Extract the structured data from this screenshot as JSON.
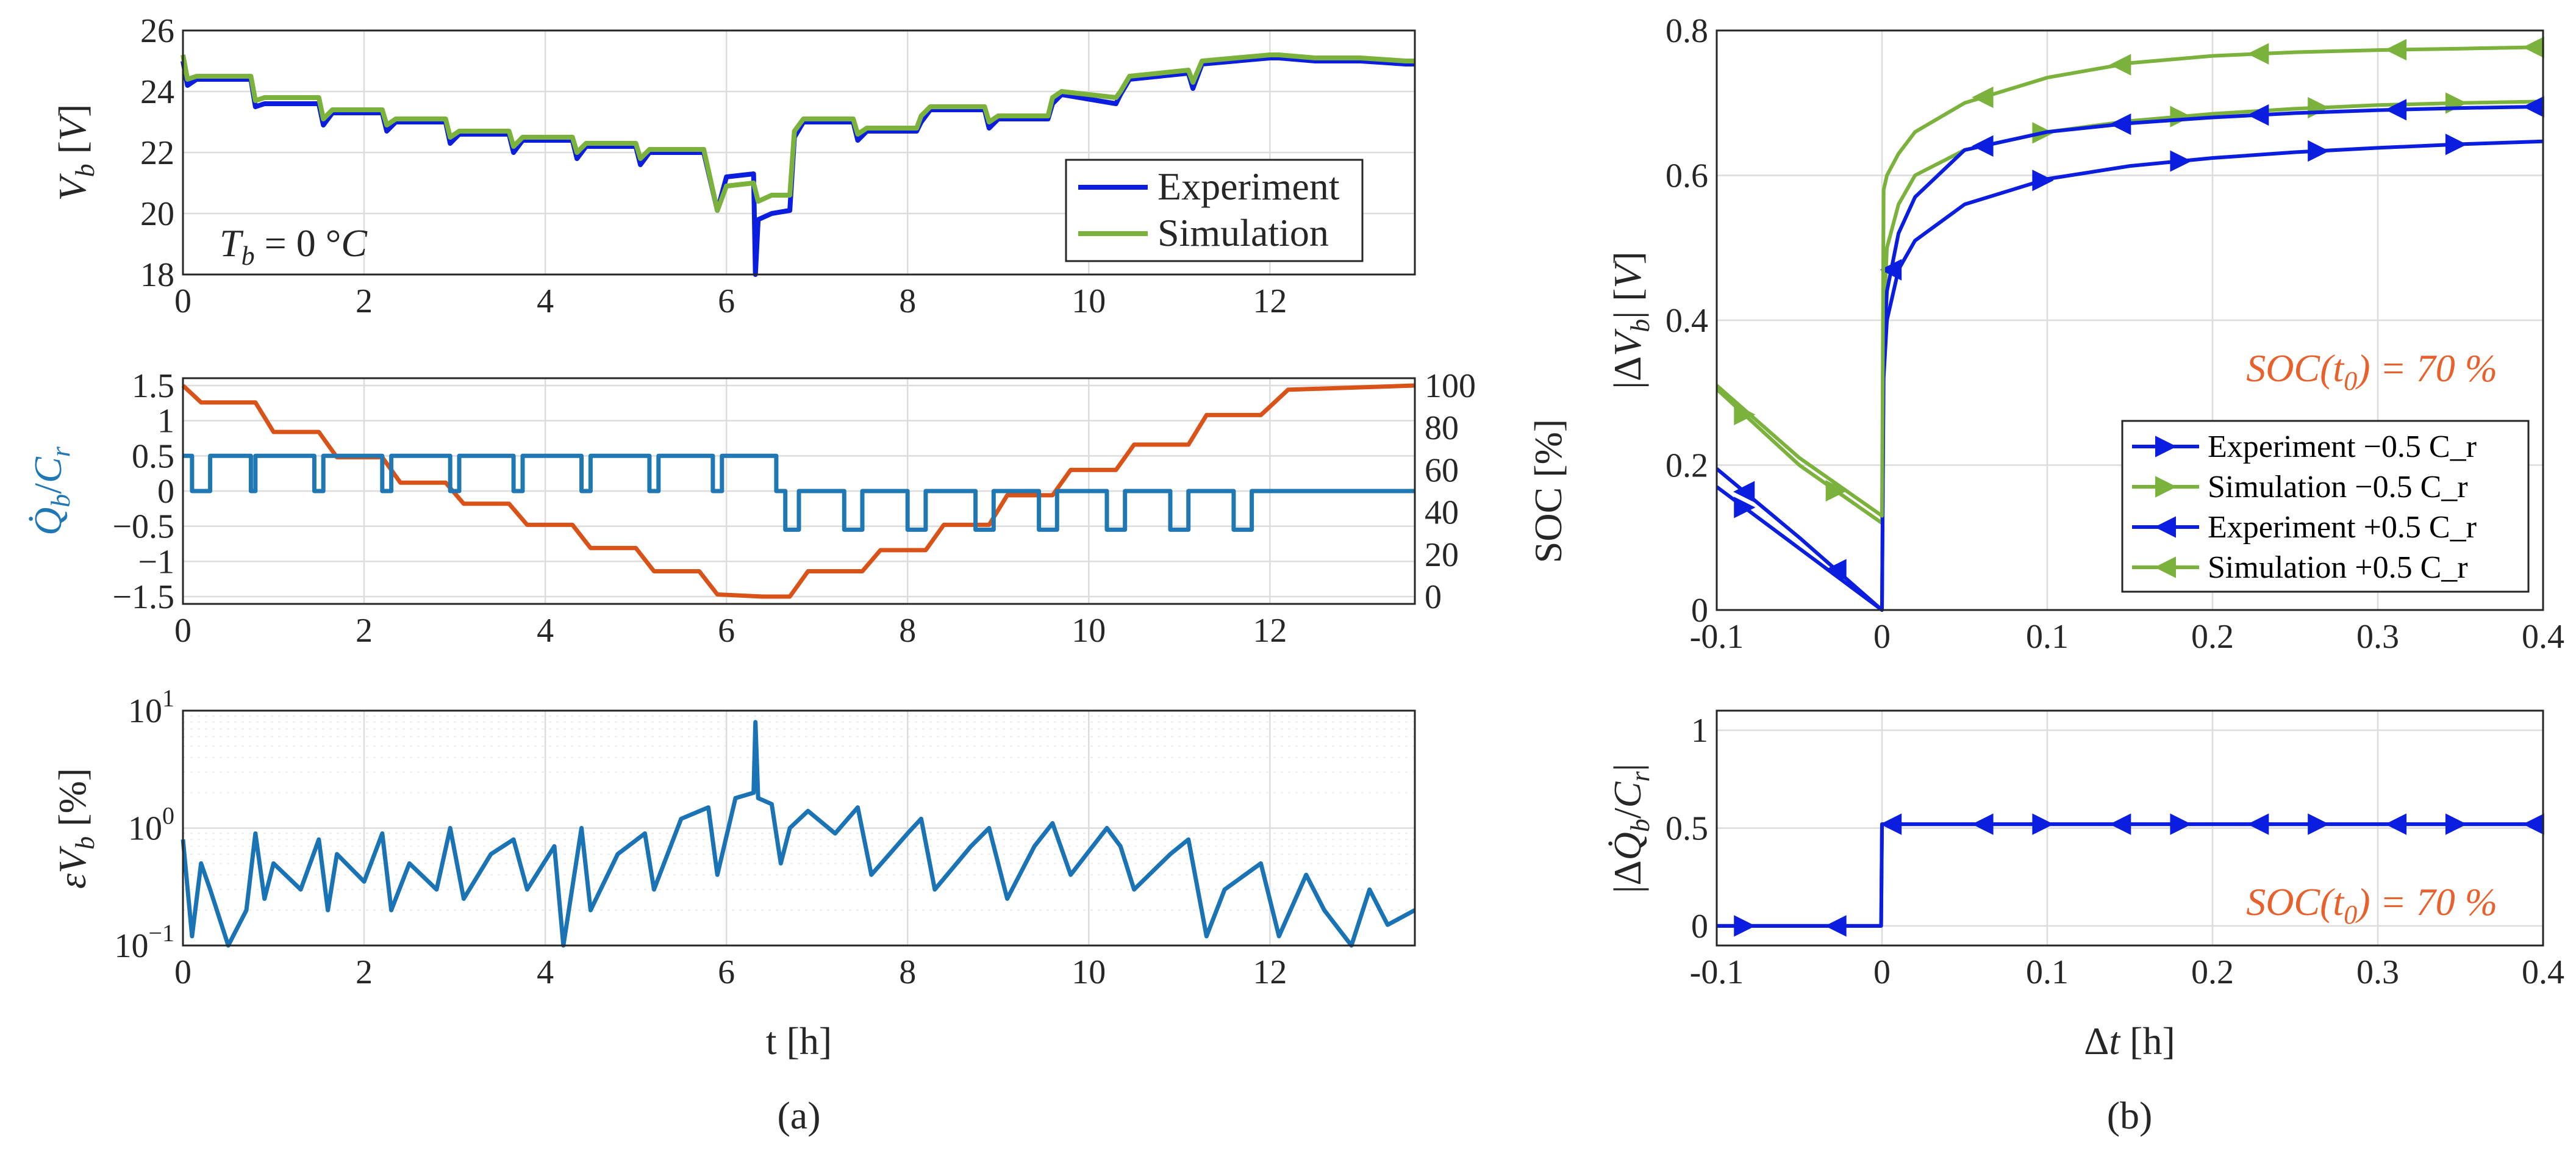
{
  "colors": {
    "experiment": "#0b1ee0",
    "simulation": "#7ab23c",
    "current": "#1f77b4",
    "soc": "#d95319",
    "annotation": "#e8602c",
    "error": "#1a73b5"
  },
  "captions": {
    "a": "(a)",
    "b": "(b)"
  },
  "chart_data": [
    {
      "id": "voltage",
      "type": "line",
      "ylabel": "V_b [V]",
      "xlim": [
        0,
        13.6
      ],
      "ylim": [
        18,
        26
      ],
      "xticks": [
        "0",
        "2",
        "4",
        "6",
        "8",
        "10",
        "12"
      ],
      "yticks": [
        "18",
        "20",
        "22",
        "24",
        "26"
      ],
      "annotation": "T_b = 0 °C",
      "legend_position": "bottom-right",
      "series": [
        {
          "name": "Experiment",
          "color": "experiment",
          "x": [
            0,
            0.05,
            0.15,
            0.3,
            0.75,
            0.8,
            0.9,
            1.5,
            1.55,
            1.65,
            2.2,
            2.25,
            2.35,
            2.9,
            2.95,
            3.05,
            3.6,
            3.65,
            3.75,
            4.3,
            4.35,
            4.45,
            5.0,
            5.05,
            5.15,
            5.75,
            5.9,
            6.0,
            6.3,
            6.32,
            6.35,
            6.5,
            6.7,
            6.75,
            6.85,
            7.4,
            7.45,
            7.55,
            8.1,
            8.15,
            8.25,
            8.85,
            8.9,
            9.0,
            9.55,
            9.6,
            9.7,
            10.3,
            10.35,
            10.45,
            11.1,
            11.15,
            11.25,
            12.0,
            12.1,
            12.5,
            13.0,
            13.5,
            13.6
          ],
          "y": [
            25.0,
            24.2,
            24.4,
            24.4,
            24.4,
            23.5,
            23.6,
            23.6,
            22.9,
            23.3,
            23.3,
            22.7,
            23.0,
            23.0,
            22.3,
            22.6,
            22.6,
            22.0,
            22.4,
            22.4,
            21.8,
            22.2,
            22.2,
            21.6,
            22.0,
            22.0,
            20.1,
            21.2,
            21.3,
            18.0,
            19.8,
            20.0,
            20.1,
            22.5,
            23.0,
            23.0,
            22.4,
            22.7,
            22.7,
            23.0,
            23.4,
            23.4,
            22.8,
            23.1,
            23.1,
            23.6,
            23.9,
            23.6,
            23.9,
            24.4,
            24.6,
            24.1,
            24.9,
            25.1,
            25.1,
            25.0,
            25.0,
            24.9,
            24.9
          ]
        },
        {
          "name": "Simulation",
          "color": "simulation",
          "x": [
            0,
            0.05,
            0.15,
            0.3,
            0.75,
            0.8,
            0.9,
            1.5,
            1.55,
            1.65,
            2.2,
            2.25,
            2.35,
            2.9,
            2.95,
            3.05,
            3.6,
            3.65,
            3.75,
            4.3,
            4.35,
            4.45,
            5.0,
            5.05,
            5.15,
            5.75,
            5.9,
            6.0,
            6.3,
            6.35,
            6.5,
            6.7,
            6.75,
            6.85,
            7.4,
            7.45,
            7.55,
            8.1,
            8.15,
            8.25,
            8.85,
            8.9,
            9.0,
            9.55,
            9.6,
            9.7,
            10.3,
            10.35,
            10.45,
            11.1,
            11.15,
            11.25,
            12.0,
            12.1,
            12.5,
            13.0,
            13.5,
            13.6
          ],
          "y": [
            25.2,
            24.4,
            24.5,
            24.5,
            24.5,
            23.7,
            23.8,
            23.8,
            23.1,
            23.4,
            23.4,
            22.9,
            23.1,
            23.1,
            22.5,
            22.7,
            22.7,
            22.2,
            22.5,
            22.5,
            22.0,
            22.3,
            22.3,
            21.8,
            22.1,
            22.1,
            20.1,
            20.9,
            21.0,
            20.4,
            20.6,
            20.6,
            22.7,
            23.1,
            23.1,
            22.6,
            22.8,
            22.8,
            23.2,
            23.5,
            23.5,
            23.0,
            23.2,
            23.2,
            23.8,
            24.0,
            23.8,
            24.0,
            24.5,
            24.7,
            24.3,
            25.0,
            25.2,
            25.2,
            25.1,
            25.1,
            25.0,
            25.0
          ]
        }
      ]
    },
    {
      "id": "current-soc",
      "type": "line",
      "ylabel_left": "Q̇_b/C_r",
      "ylabel_right": "SOC [%]",
      "xlim": [
        0,
        13.6
      ],
      "ylim_left": [
        -1.5,
        1.5
      ],
      "ylim_right": [
        0,
        100
      ],
      "xticks": [
        "0",
        "2",
        "4",
        "6",
        "8",
        "10",
        "12"
      ],
      "yticks_left": [
        "−1.5",
        "−1",
        "−0.5",
        "0",
        "0.5",
        "1",
        "1.5"
      ],
      "yticks_right": [
        "0",
        "20",
        "40",
        "60",
        "80",
        "100"
      ],
      "series": [
        {
          "name": "current",
          "axis": "left",
          "color": "current",
          "x": [
            0,
            0.1,
            0.1,
            0.3,
            0.3,
            0.75,
            0.75,
            0.8,
            0.8,
            1.45,
            1.45,
            1.55,
            1.55,
            2.2,
            2.2,
            2.3,
            2.3,
            2.95,
            2.95,
            3.05,
            3.05,
            3.65,
            3.65,
            3.75,
            3.75,
            4.4,
            4.4,
            4.5,
            4.5,
            5.15,
            5.15,
            5.25,
            5.25,
            5.85,
            5.85,
            5.95,
            5.95,
            6.55,
            6.55,
            6.65,
            6.65,
            6.8,
            6.8,
            7.3,
            7.3,
            7.5,
            7.5,
            8.0,
            8.0,
            8.2,
            8.2,
            8.75,
            8.75,
            8.95,
            8.95,
            9.45,
            9.45,
            9.65,
            9.65,
            10.2,
            10.2,
            10.4,
            10.4,
            10.9,
            10.9,
            11.1,
            11.1,
            11.6,
            11.6,
            11.8,
            11.8,
            13.6
          ],
          "y": [
            0.5,
            0.5,
            0,
            0,
            0.5,
            0.5,
            0,
            0,
            0.5,
            0.5,
            0,
            0,
            0.5,
            0.5,
            0,
            0,
            0.5,
            0.5,
            0,
            0,
            0.5,
            0.5,
            0,
            0,
            0.5,
            0.5,
            0,
            0,
            0.5,
            0.5,
            0,
            0,
            0.5,
            0.5,
            0,
            0,
            0.5,
            0.5,
            0,
            0,
            -0.55,
            -0.55,
            0,
            0,
            -0.55,
            -0.55,
            0,
            0,
            -0.55,
            -0.55,
            0,
            0,
            -0.55,
            -0.55,
            0,
            0,
            -0.55,
            -0.55,
            0,
            0,
            -0.55,
            -0.55,
            0,
            0,
            -0.55,
            -0.55,
            0,
            0,
            -0.55,
            -0.55,
            0,
            0
          ]
        },
        {
          "name": "soc",
          "axis": "right",
          "color": "soc",
          "x": [
            0,
            0.2,
            0.8,
            1.0,
            1.5,
            1.7,
            2.2,
            2.4,
            2.9,
            3.1,
            3.6,
            3.8,
            4.3,
            4.5,
            5.0,
            5.2,
            5.7,
            5.9,
            6.4,
            6.6,
            6.7,
            6.9,
            7.5,
            7.7,
            8.2,
            8.4,
            8.9,
            9.1,
            9.6,
            9.8,
            10.3,
            10.5,
            11.1,
            11.3,
            11.9,
            12.2,
            13.6
          ],
          "y": [
            100,
            92,
            92,
            78,
            78,
            66,
            66,
            54,
            54,
            44,
            44,
            34,
            34,
            23,
            23,
            12,
            12,
            1,
            0,
            0,
            0,
            12,
            12,
            22,
            22,
            34,
            34,
            48,
            48,
            60,
            60,
            72,
            72,
            86,
            86,
            98,
            100
          ]
        }
      ]
    },
    {
      "id": "error",
      "type": "line",
      "ylabel": "εV_b [%]",
      "yscale": "log",
      "xlim": [
        0,
        13.6
      ],
      "ylim": [
        0.1,
        10
      ],
      "xticks": [
        "0",
        "2",
        "4",
        "6",
        "8",
        "10",
        "12"
      ],
      "yticks": [
        "10^-1",
        "10^0",
        "10^1"
      ],
      "xlabel": "t [h]",
      "series": [
        {
          "name": "error",
          "color": "error",
          "x": [
            0,
            0.1,
            0.2,
            0.3,
            0.5,
            0.7,
            0.8,
            0.9,
            1.0,
            1.3,
            1.5,
            1.6,
            1.7,
            2.0,
            2.2,
            2.3,
            2.5,
            2.8,
            2.95,
            3.1,
            3.4,
            3.65,
            3.8,
            4.1,
            4.2,
            4.4,
            4.5,
            4.8,
            5.1,
            5.2,
            5.5,
            5.8,
            5.9,
            6.1,
            6.3,
            6.32,
            6.35,
            6.5,
            6.6,
            6.7,
            6.9,
            7.2,
            7.45,
            7.6,
            8.0,
            8.15,
            8.3,
            8.7,
            8.9,
            9.1,
            9.4,
            9.6,
            9.8,
            10.2,
            10.35,
            10.5,
            10.9,
            11.1,
            11.3,
            11.5,
            11.9,
            12.1,
            12.4,
            12.6,
            12.9,
            13.1,
            13.3,
            13.6
          ],
          "y": [
            0.8,
            0.12,
            0.5,
            0.3,
            0.1,
            0.2,
            0.9,
            0.25,
            0.5,
            0.3,
            0.8,
            0.2,
            0.6,
            0.35,
            0.9,
            0.2,
            0.5,
            0.3,
            1.0,
            0.25,
            0.6,
            0.8,
            0.3,
            0.7,
            0.1,
            1.0,
            0.2,
            0.6,
            0.9,
            0.3,
            1.2,
            1.5,
            0.4,
            1.8,
            2.0,
            8.0,
            1.8,
            1.6,
            0.5,
            1.0,
            1.4,
            0.9,
            1.5,
            0.4,
            0.9,
            1.2,
            0.3,
            0.7,
            1.0,
            0.25,
            0.7,
            1.1,
            0.4,
            1.0,
            0.7,
            0.3,
            0.6,
            0.8,
            0.12,
            0.3,
            0.5,
            0.12,
            0.4,
            0.2,
            0.1,
            0.3,
            0.15,
            0.2
          ]
        }
      ]
    },
    {
      "id": "delta-v",
      "type": "line",
      "ylabel": "|ΔV_b| [V]",
      "xlim": [
        -0.1,
        0.4
      ],
      "ylim": [
        0,
        0.8
      ],
      "xticks": [
        "-0.1",
        "0",
        "0.1",
        "0.2",
        "0.3",
        "0.4"
      ],
      "yticks": [
        "0",
        "0.2",
        "0.4",
        "0.6",
        "0.8"
      ],
      "annotation": "SOC(t_0) = 70 %",
      "legend_position": "bottom-right",
      "series": [
        {
          "name": "Experiment −0.5 C_r",
          "color": "experiment",
          "marker": "triangle-right",
          "x": [
            -0.1,
            -0.05,
            0,
            0.001,
            0.003,
            0.01,
            0.02,
            0.05,
            0.1,
            0.15,
            0.2,
            0.25,
            0.3,
            0.35,
            0.4
          ],
          "y": [
            0.17,
            0.085,
            0.0,
            0.32,
            0.4,
            0.47,
            0.51,
            0.56,
            0.595,
            0.613,
            0.624,
            0.632,
            0.638,
            0.643,
            0.647
          ],
          "marker_x": [
            -0.0833,
            0.0972,
            0.1806,
            0.2639,
            0.3472
          ]
        },
        {
          "name": "Simulation −0.5 C_r",
          "color": "simulation",
          "marker": "triangle-right",
          "x": [
            -0.1,
            -0.05,
            0,
            0.001,
            0.003,
            0.01,
            0.02,
            0.05,
            0.1,
            0.15,
            0.2,
            0.25,
            0.3,
            0.35,
            0.4
          ],
          "y": [
            0.305,
            0.2,
            0.12,
            0.4,
            0.5,
            0.56,
            0.6,
            0.635,
            0.66,
            0.675,
            0.685,
            0.692,
            0.697,
            0.7,
            0.702
          ],
          "marker_x": [
            -0.0833,
            -0.0278,
            0.0972,
            0.1806,
            0.2639,
            0.3472
          ]
        },
        {
          "name": "Experiment +0.5 C_r",
          "color": "experiment",
          "marker": "triangle-left",
          "x": [
            -0.1,
            -0.05,
            0,
            0.001,
            0.003,
            0.01,
            0.02,
            0.05,
            0.1,
            0.15,
            0.2,
            0.25,
            0.3,
            0.35,
            0.4
          ],
          "y": [
            0.195,
            0.1,
            0.0,
            0.35,
            0.44,
            0.52,
            0.57,
            0.635,
            0.66,
            0.672,
            0.68,
            0.686,
            0.69,
            0.693,
            0.695
          ],
          "marker_x": [
            -0.0833,
            -0.0278,
            0.0056,
            0.0611,
            0.1444,
            0.2278,
            0.3111,
            0.3944
          ]
        },
        {
          "name": "Simulation +0.5 C_r",
          "color": "simulation",
          "marker": "triangle-left",
          "x": [
            -0.1,
            -0.05,
            0,
            0.001,
            0.003,
            0.01,
            0.02,
            0.05,
            0.1,
            0.15,
            0.2,
            0.25,
            0.3,
            0.35,
            0.4
          ],
          "y": [
            0.31,
            0.21,
            0.13,
            0.58,
            0.6,
            0.63,
            0.66,
            0.7,
            0.735,
            0.755,
            0.765,
            0.77,
            0.773,
            0.775,
            0.777
          ],
          "marker_x": [
            0.0611,
            0.1444,
            0.2278,
            0.3111,
            0.3944
          ]
        }
      ]
    },
    {
      "id": "delta-q",
      "type": "line",
      "ylabel": "|ΔQ̇_b/C_r|",
      "xlim": [
        -0.1,
        0.4
      ],
      "ylim": [
        -0.1,
        1.1
      ],
      "xticks": [
        "-0.1",
        "0",
        "0.1",
        "0.2",
        "0.3",
        "0.4"
      ],
      "yticks": [
        "0",
        "0.5",
        "1"
      ],
      "xlabel": "Δt [h]",
      "annotation": "SOC(t_0) = 70 %",
      "series": [
        {
          "name": "Experiment −0.5 C_r",
          "color": "experiment",
          "marker": "triangle-right",
          "x": [
            -0.1,
            -0.0005,
            0,
            0.4
          ],
          "y": [
            0.0,
            0.0,
            0.52,
            0.52
          ],
          "marker_x": [
            -0.0833,
            0.0972,
            0.1806,
            0.2639,
            0.3472
          ]
        },
        {
          "name": "Experiment +0.5 C_r",
          "color": "experiment",
          "marker": "triangle-left",
          "x": [
            -0.1,
            -0.0005,
            0,
            0.4
          ],
          "y": [
            0.0,
            0.0,
            0.52,
            0.52
          ],
          "marker_x": [
            -0.0278,
            0.0056,
            0.0611,
            0.1444,
            0.2278,
            0.3111,
            0.3944
          ]
        }
      ]
    }
  ]
}
